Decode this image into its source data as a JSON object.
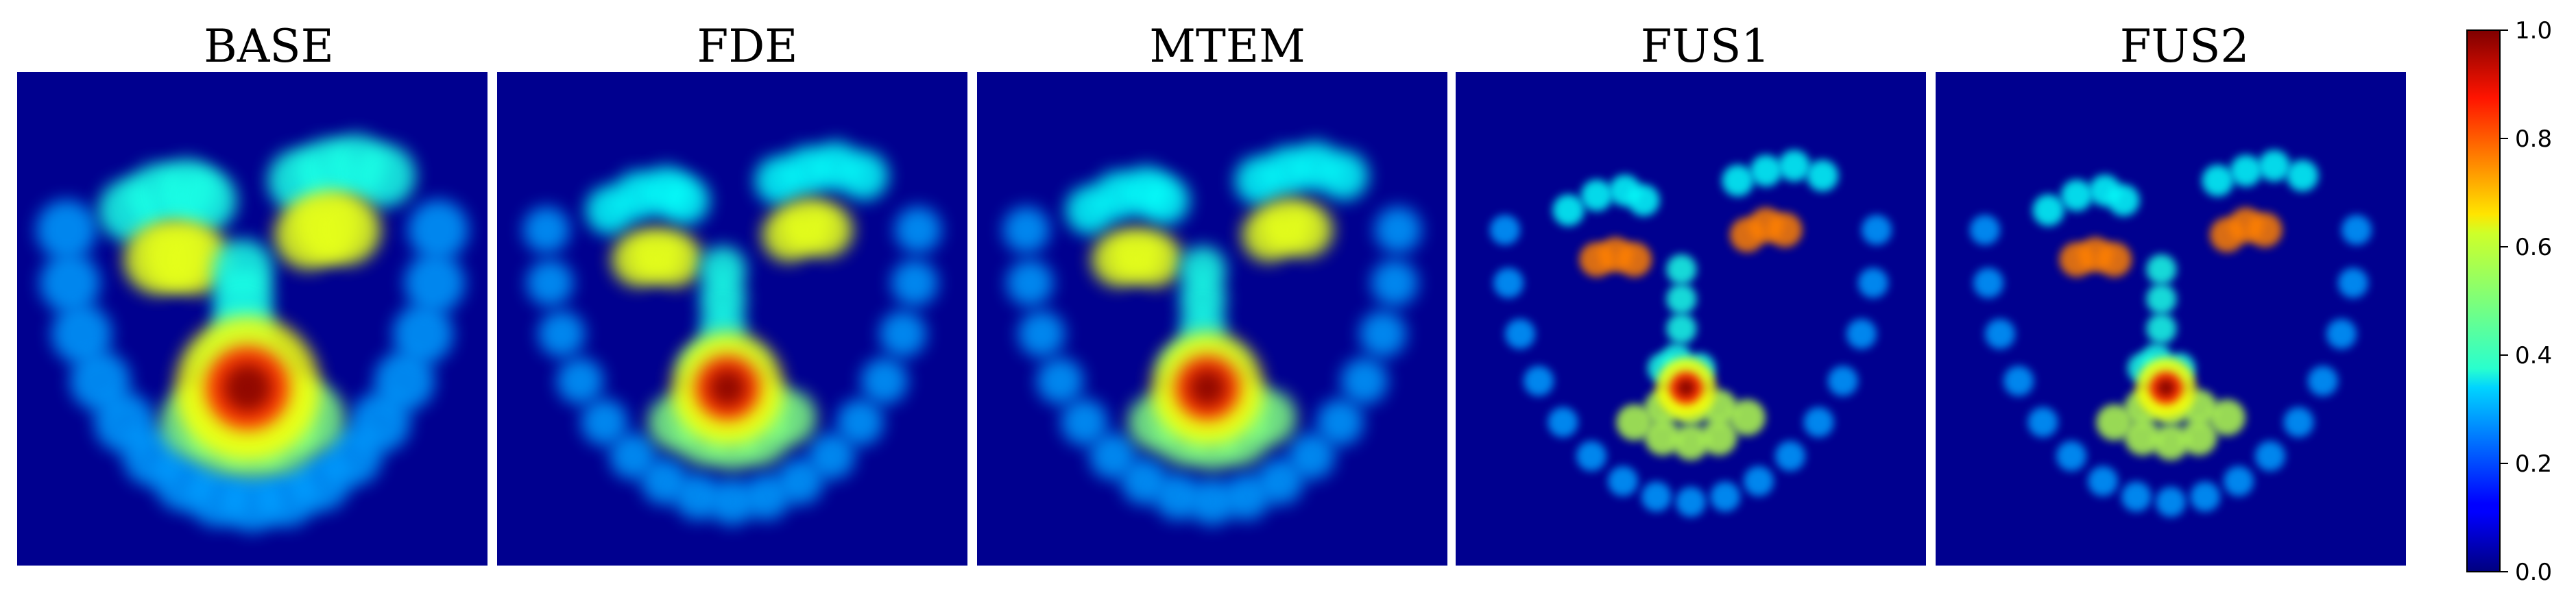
{
  "chart_data": {
    "type": "heatmap",
    "panels": [
      {
        "title": "BASE"
      },
      {
        "title": "FDE"
      },
      {
        "title": "MTEM"
      },
      {
        "title": "FUS1"
      },
      {
        "title": "FUS2"
      }
    ],
    "colorbar": {
      "colormap": "jet",
      "range": [
        0.0,
        1.0
      ],
      "ticks": [
        "0.0",
        "0.2",
        "0.4",
        "0.6",
        "0.8",
        "1.0"
      ]
    },
    "colors": {
      "background": "#00007f",
      "panel_low": "#00008f"
    }
  }
}
